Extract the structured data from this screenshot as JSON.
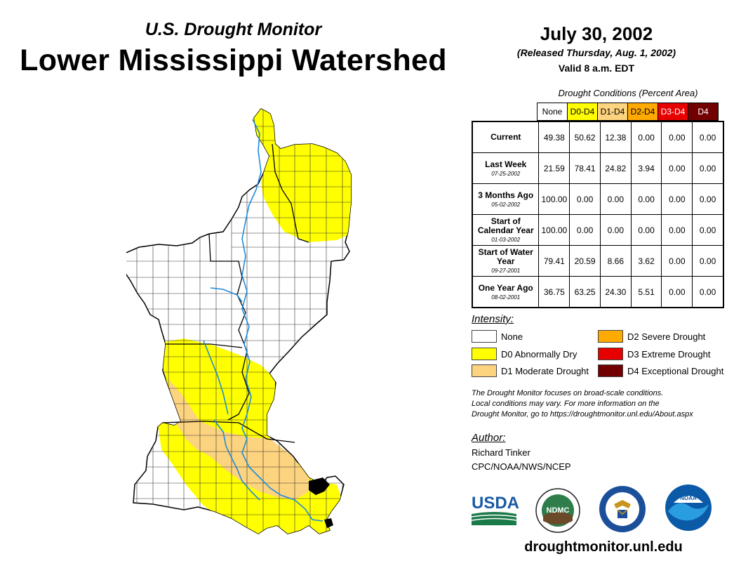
{
  "header": {
    "subtitle": "U.S. Drought Monitor",
    "title": "Lower Mississippi Watershed",
    "date": "July 30, 2002",
    "released": "(Released Thursday, Aug. 1, 2002)",
    "valid": "Valid 8 a.m. EDT"
  },
  "table": {
    "caption": "Drought Conditions (Percent Area)",
    "columns": [
      {
        "label": "None",
        "bg": "#ffffff",
        "fg": "#000000"
      },
      {
        "label": "D0-D4",
        "bg": "#ffff00",
        "fg": "#000000"
      },
      {
        "label": "D1-D4",
        "bg": "#fcd37f",
        "fg": "#000000"
      },
      {
        "label": "D2-D4",
        "bg": "#ffaa00",
        "fg": "#000000"
      },
      {
        "label": "D3-D4",
        "bg": "#e60000",
        "fg": "#ffffff"
      },
      {
        "label": "D4",
        "bg": "#730000",
        "fg": "#ffffff"
      }
    ],
    "rows": [
      {
        "label": "Current",
        "date": "",
        "values": [
          "49.38",
          "50.62",
          "12.38",
          "0.00",
          "0.00",
          "0.00"
        ]
      },
      {
        "label": "Last Week",
        "date": "07-25-2002",
        "values": [
          "21.59",
          "78.41",
          "24.82",
          "3.94",
          "0.00",
          "0.00"
        ]
      },
      {
        "label": "3 Months Ago",
        "date": "05-02-2002",
        "values": [
          "100.00",
          "0.00",
          "0.00",
          "0.00",
          "0.00",
          "0.00"
        ]
      },
      {
        "label": "Start of Calendar Year",
        "date": "01-03-2002",
        "values": [
          "100.00",
          "0.00",
          "0.00",
          "0.00",
          "0.00",
          "0.00"
        ]
      },
      {
        "label": "Start of Water Year",
        "date": "09-27-2001",
        "values": [
          "79.41",
          "20.59",
          "8.66",
          "3.62",
          "0.00",
          "0.00"
        ]
      },
      {
        "label": "One Year Ago",
        "date": "08-02-2001",
        "values": [
          "36.75",
          "63.25",
          "24.30",
          "5.51",
          "0.00",
          "0.00"
        ]
      }
    ]
  },
  "legend": {
    "title": "Intensity:",
    "items": [
      {
        "label": "None",
        "color": "#ffffff"
      },
      {
        "label": "D0 Abnormally Dry",
        "color": "#ffff00"
      },
      {
        "label": "D1 Moderate Drought",
        "color": "#fcd37f"
      },
      {
        "label": "D2 Severe Drought",
        "color": "#ffaa00"
      },
      {
        "label": "D3 Extreme Drought",
        "color": "#e60000"
      },
      {
        "label": "D4 Exceptional Drought",
        "color": "#730000"
      }
    ]
  },
  "note": {
    "line1": "The Drought Monitor focuses on broad-scale conditions.",
    "line2": "Local conditions may vary. For more information on the",
    "line3": "Drought Monitor, go to https://droughtmonitor.unl.edu/About.aspx"
  },
  "author": {
    "heading": "Author:",
    "name": "Richard Tinker",
    "org": "CPC/NOAA/NWS/NCEP"
  },
  "logos": {
    "usda": "USDA",
    "ndmc": "NDMC",
    "noaa": "NOAA"
  },
  "footer": {
    "url": "droughtmonitor.unl.edu"
  }
}
